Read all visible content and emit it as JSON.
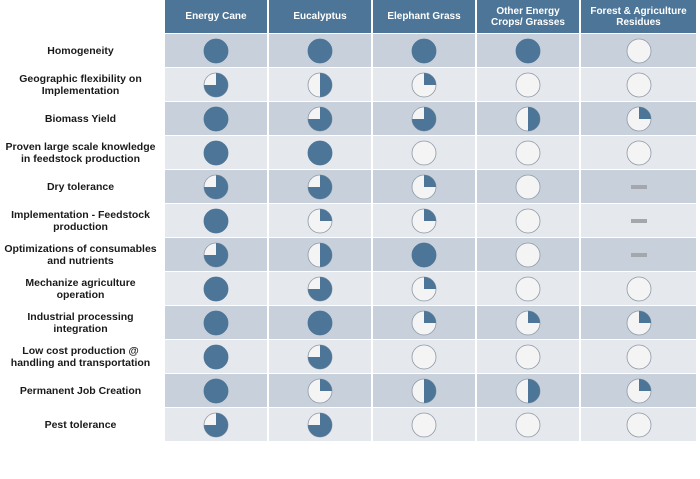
{
  "colors": {
    "header_bg": "#4d7597",
    "fill": "#4d7597",
    "empty": "#f4f4f4",
    "outline": "#8d9aa7",
    "row_dark": "#c8d1db",
    "row_light": "#e5e8ec",
    "dash": "#a4a8ad"
  },
  "columns": [
    "Energy Cane",
    "Eucalyptus",
    "Elephant Grass",
    "Other Energy\nCrops/ Grasses",
    "Forest & Agriculture\nResidues"
  ],
  "rows": [
    {
      "label": "Homogeneity",
      "scores": [
        1,
        1,
        1,
        1,
        0
      ]
    },
    {
      "label": "Geographic flexibility on\nImplementation",
      "scores": [
        0.75,
        0.5,
        0.25,
        0,
        0
      ]
    },
    {
      "label": "Biomass Yield",
      "scores": [
        1,
        0.75,
        0.75,
        0.5,
        0.25
      ]
    },
    {
      "label": "Proven large scale knowledge\nin feedstock production",
      "scores": [
        1,
        1,
        0,
        0,
        0
      ]
    },
    {
      "label": "Dry tolerance",
      "scores": [
        0.75,
        0.75,
        0.25,
        0,
        "-"
      ]
    },
    {
      "label": "Implementation - Feedstock\nproduction",
      "scores": [
        1,
        0.25,
        0.25,
        0,
        "-"
      ]
    },
    {
      "label": "Optimizations of consumables\nand nutrients",
      "scores": [
        0.75,
        0.5,
        1,
        0,
        "-"
      ]
    },
    {
      "label": "Mechanize agriculture\noperation",
      "scores": [
        1,
        0.75,
        0.25,
        0,
        0
      ]
    },
    {
      "label": "Industrial processing\nintegration",
      "scores": [
        1,
        1,
        0.25,
        0.25,
        0.25
      ]
    },
    {
      "label": "Low cost production @\nhandling and transportation",
      "scores": [
        1,
        0.75,
        0,
        0,
        0
      ]
    },
    {
      "label": "Permanent Job Creation",
      "scores": [
        1,
        0.25,
        0.5,
        0.5,
        0.25
      ]
    },
    {
      "label": "Pest tolerance",
      "scores": [
        0.75,
        0.75,
        0,
        0,
        0
      ]
    }
  ]
}
